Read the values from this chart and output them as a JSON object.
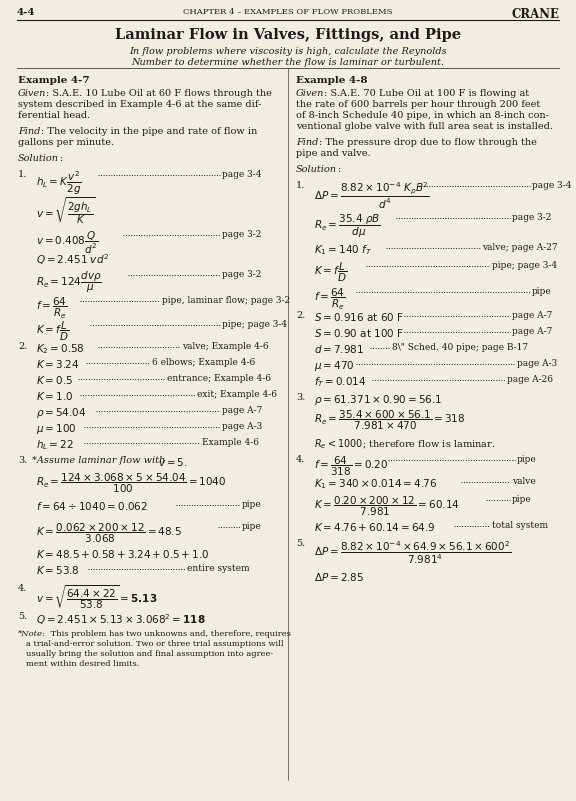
{
  "page_num": "4-4",
  "header_center": "CHAPTER 4 – EXAMPLES OF FLOW PROBLEMS",
  "header_right": "CRANE",
  "title": "Laminar Flow in Valves, Fittings, and Pipe",
  "subtitle_line1": "In flow problems where viscosity is high, calculate the Reynolds",
  "subtitle_line2": "Number to determine whether the flow is laminar or turbulent.",
  "bg_color": "#f2ede3",
  "text_color": "#1a1a1a"
}
